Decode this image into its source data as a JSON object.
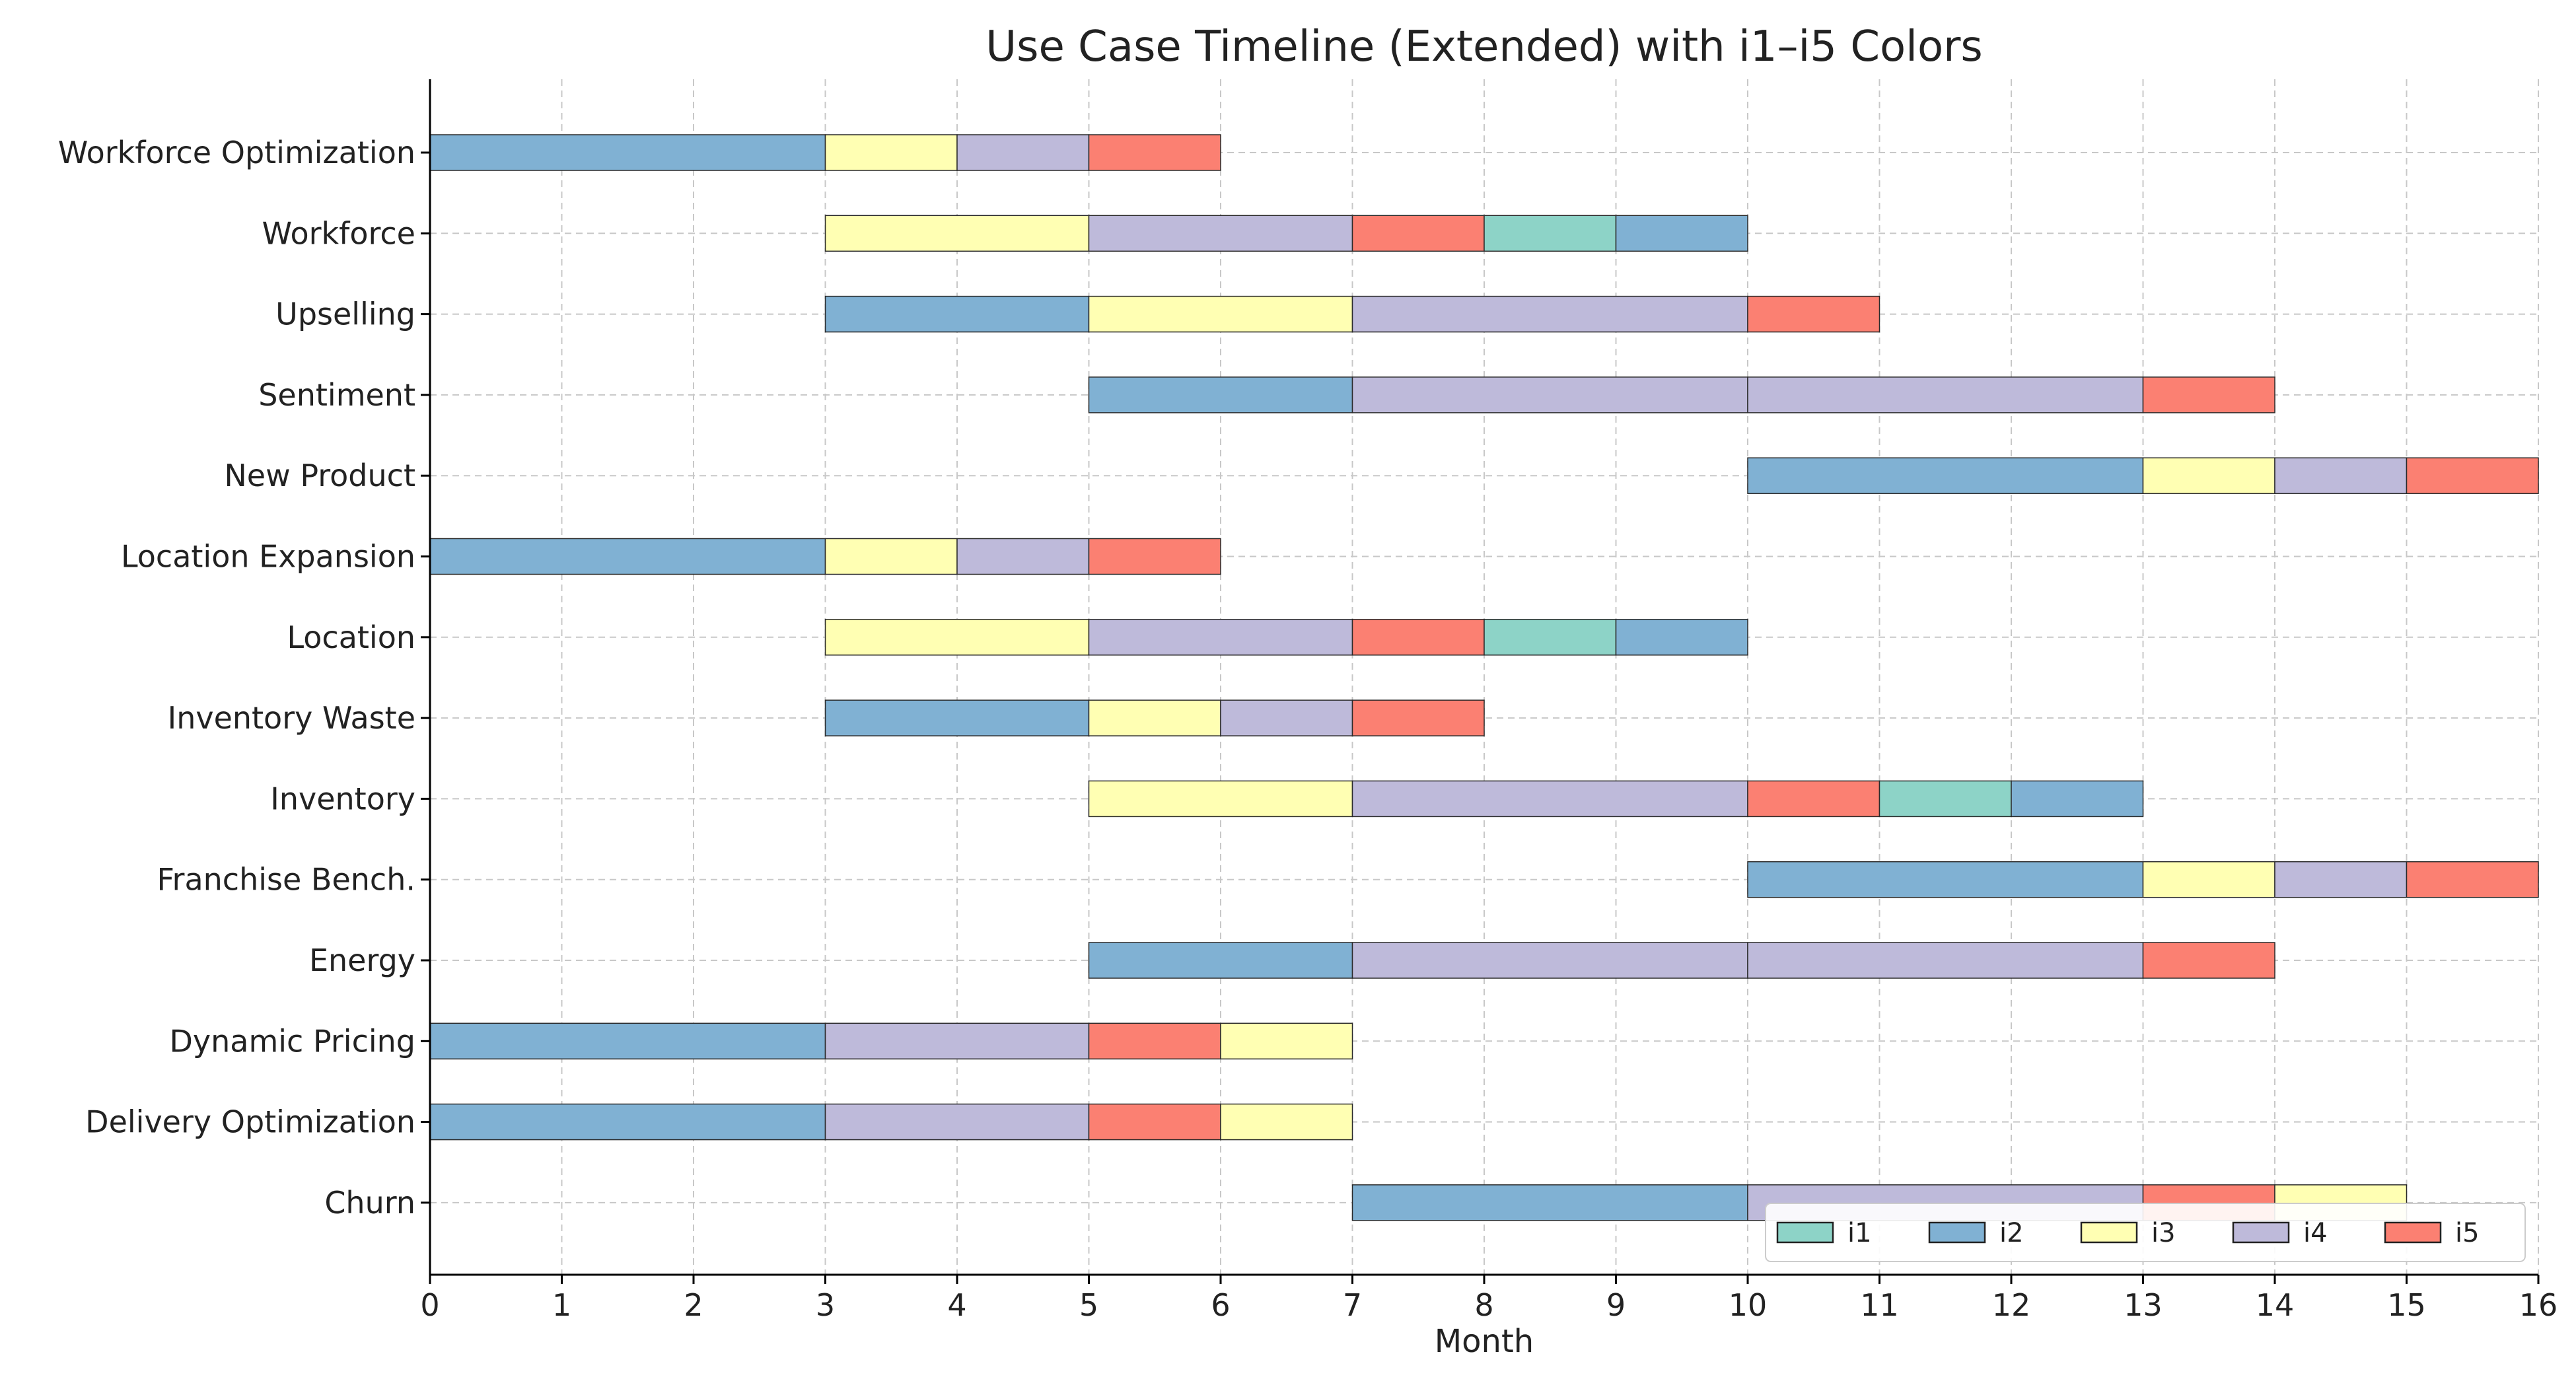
{
  "chart_data": {
    "type": "bar",
    "orientation": "horizontal-gantt",
    "title": "Use Case Timeline (Extended) with i1–i5 Colors",
    "xlabel": "Month",
    "ylabel": "",
    "xlim": [
      0,
      16
    ],
    "xticks": [
      0,
      1,
      2,
      3,
      4,
      5,
      6,
      7,
      8,
      9,
      10,
      11,
      12,
      13,
      14,
      15,
      16
    ],
    "grid": true,
    "legend_position": "bottom-right",
    "series": [
      {
        "name": "i1",
        "color": "#8dd3c7"
      },
      {
        "name": "i2",
        "color": "#80b1d3"
      },
      {
        "name": "i3",
        "color": "#ffffb3"
      },
      {
        "name": "i4",
        "color": "#bebada"
      },
      {
        "name": "i5",
        "color": "#fb8072"
      }
    ],
    "categories": [
      {
        "label": "Workforce Optimization",
        "segments": [
          [
            "i2",
            0,
            3
          ],
          [
            "i3",
            3,
            4
          ],
          [
            "i4",
            4,
            5
          ],
          [
            "i5",
            5,
            6
          ]
        ]
      },
      {
        "label": "Workforce",
        "segments": [
          [
            "i3",
            3,
            5
          ],
          [
            "i4",
            5,
            7
          ],
          [
            "i5",
            7,
            8
          ],
          [
            "i1",
            8,
            9
          ],
          [
            "i2",
            9,
            10
          ]
        ]
      },
      {
        "label": "Upselling",
        "segments": [
          [
            "i2",
            3,
            5
          ],
          [
            "i3",
            5,
            7
          ],
          [
            "i4",
            7,
            10
          ],
          [
            "i5",
            10,
            11
          ]
        ]
      },
      {
        "label": "Sentiment",
        "segments": [
          [
            "i2",
            5,
            7
          ],
          [
            "i4",
            7,
            10
          ],
          [
            "i4",
            10,
            13
          ],
          [
            "i5",
            13,
            14
          ]
        ]
      },
      {
        "label": "New Product",
        "segments": [
          [
            "i2",
            10,
            13
          ],
          [
            "i3",
            13,
            14
          ],
          [
            "i4",
            14,
            15
          ],
          [
            "i5",
            15,
            16
          ]
        ]
      },
      {
        "label": "Location Expansion",
        "segments": [
          [
            "i2",
            0,
            3
          ],
          [
            "i3",
            3,
            4
          ],
          [
            "i4",
            4,
            5
          ],
          [
            "i5",
            5,
            6
          ]
        ]
      },
      {
        "label": "Location",
        "segments": [
          [
            "i3",
            3,
            5
          ],
          [
            "i4",
            5,
            7
          ],
          [
            "i5",
            7,
            8
          ],
          [
            "i1",
            8,
            9
          ],
          [
            "i2",
            9,
            10
          ]
        ]
      },
      {
        "label": "Inventory Waste",
        "segments": [
          [
            "i2",
            3,
            5
          ],
          [
            "i3",
            5,
            6
          ],
          [
            "i4",
            6,
            7
          ],
          [
            "i5",
            7,
            8
          ]
        ]
      },
      {
        "label": "Inventory",
        "segments": [
          [
            "i3",
            5,
            7
          ],
          [
            "i4",
            7,
            10
          ],
          [
            "i5",
            10,
            11
          ],
          [
            "i1",
            11,
            12
          ],
          [
            "i2",
            12,
            13
          ]
        ]
      },
      {
        "label": "Franchise Bench.",
        "segments": [
          [
            "i2",
            10,
            13
          ],
          [
            "i3",
            13,
            14
          ],
          [
            "i4",
            14,
            15
          ],
          [
            "i5",
            15,
            16
          ]
        ]
      },
      {
        "label": "Energy",
        "segments": [
          [
            "i2",
            5,
            7
          ],
          [
            "i4",
            7,
            10
          ],
          [
            "i4",
            10,
            13
          ],
          [
            "i5",
            13,
            14
          ]
        ]
      },
      {
        "label": "Dynamic Pricing",
        "segments": [
          [
            "i2",
            0,
            3
          ],
          [
            "i4",
            3,
            5
          ],
          [
            "i5",
            5,
            6
          ],
          [
            "i3",
            6,
            7
          ]
        ]
      },
      {
        "label": "Delivery Optimization",
        "segments": [
          [
            "i2",
            0,
            3
          ],
          [
            "i4",
            3,
            5
          ],
          [
            "i5",
            5,
            6
          ],
          [
            "i3",
            6,
            7
          ]
        ]
      },
      {
        "label": "Churn",
        "segments": [
          [
            "i2",
            7,
            10
          ],
          [
            "i4",
            10,
            13
          ],
          [
            "i5",
            13,
            14
          ],
          [
            "i3",
            14,
            15
          ]
        ]
      }
    ]
  }
}
